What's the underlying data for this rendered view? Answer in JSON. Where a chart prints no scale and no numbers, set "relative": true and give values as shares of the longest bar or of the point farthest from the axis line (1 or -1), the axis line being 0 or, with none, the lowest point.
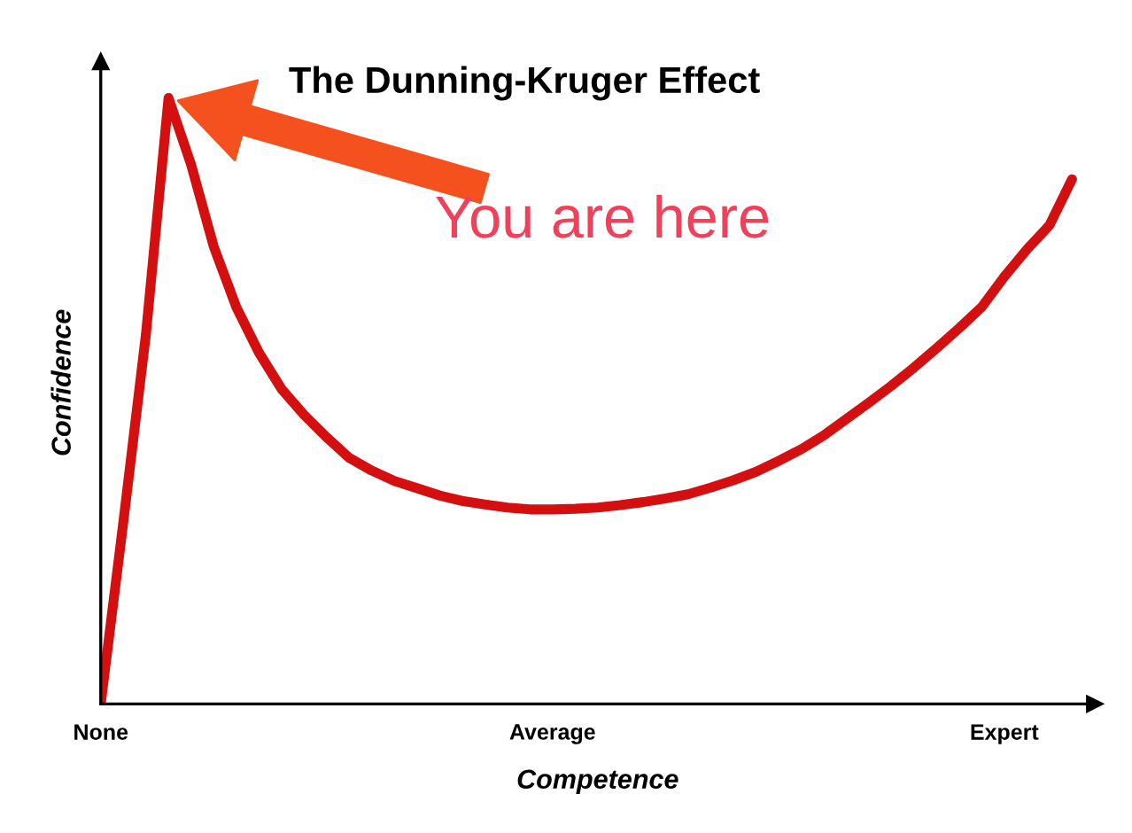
{
  "chart_data": {
    "type": "line",
    "title": "The Dunning-Kruger Effect",
    "xlabel": "Competence",
    "ylabel": "Confidence",
    "relative": true,
    "categories": [
      "None",
      null,
      null,
      null,
      null,
      null,
      null,
      null,
      null,
      null,
      null,
      null,
      null,
      null,
      null,
      null,
      null,
      null,
      null,
      null,
      "Average",
      null,
      null,
      null,
      null,
      null,
      null,
      null,
      null,
      null,
      null,
      null,
      null,
      null,
      null,
      null,
      null,
      null,
      null,
      null,
      "Expert",
      null,
      null,
      null
    ],
    "series": [
      {
        "color": "#d40f0f",
        "values": [
          0,
          0.3,
          0.61,
          1,
          0.89,
          0.755,
          0.655,
          0.58,
          0.52,
          0.477,
          0.44,
          0.406,
          0.385,
          0.368,
          0.356,
          0.344,
          0.335,
          0.329,
          0.324,
          0.321,
          0.321,
          0.322,
          0.324,
          0.328,
          0.333,
          0.339,
          0.346,
          0.357,
          0.369,
          0.383,
          0.401,
          0.42,
          0.443,
          0.47,
          0.497,
          0.525,
          0.555,
          0.587,
          0.62,
          0.655,
          0.705,
          0.75,
          0.79,
          0.866
        ]
      }
    ],
    "annotations": [
      "You are here"
    ],
    "grid": false,
    "legend": false,
    "marker": "none",
    "line_style": "solid"
  }
}
